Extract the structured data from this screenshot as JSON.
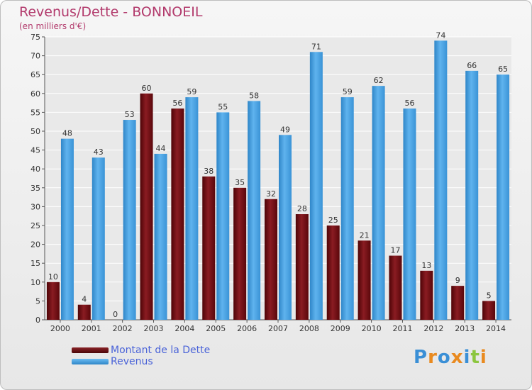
{
  "title": "Revenus/Dette - BONNOEIL",
  "subtitle": "(en milliers d'€)",
  "brand": "Proxiti",
  "colors": {
    "dette": "#7a0c10",
    "revenus": "#4aa3e6",
    "title": "#b23a6c",
    "legend_text": "#4a63d8",
    "grid": "#ffffff"
  },
  "chart_data": {
    "type": "bar",
    "categories": [
      "2000",
      "2001",
      "2002",
      "2003",
      "2004",
      "2005",
      "2006",
      "2007",
      "2008",
      "2009",
      "2010",
      "2011",
      "2012",
      "2013",
      "2014"
    ],
    "series": [
      {
        "name": "Montant de la Dette",
        "values": [
          10,
          4,
          0,
          60,
          56,
          38,
          35,
          32,
          28,
          25,
          21,
          17,
          13,
          9,
          5
        ]
      },
      {
        "name": "Revenus",
        "values": [
          48,
          43,
          53,
          44,
          59,
          55,
          58,
          49,
          71,
          59,
          62,
          56,
          74,
          66,
          65
        ]
      }
    ],
    "yticks": [
      0,
      5,
      10,
      15,
      20,
      25,
      30,
      35,
      40,
      45,
      50,
      55,
      60,
      65,
      70,
      75
    ],
    "ylim": [
      0,
      75
    ],
    "grid": true,
    "legend_position": "bottom-left",
    "title": "Revenus/Dette - BONNOEIL",
    "xlabel": "",
    "ylabel": "(en milliers d'€)"
  }
}
